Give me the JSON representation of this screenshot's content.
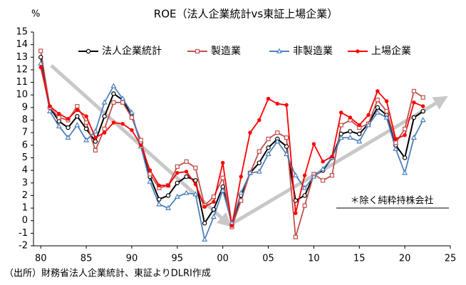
{
  "chart_data": {
    "type": "line",
    "title": "ROE（法人企業統計vs東証上場企業）",
    "y_label": "%",
    "annotation": "＊除く純粋持株会社",
    "source": "（出所）財務省法人企業統計、東証よりDLRI作成",
    "x": [
      1980,
      1981,
      1982,
      1983,
      1984,
      1985,
      1986,
      1987,
      1988,
      1989,
      1990,
      1991,
      1992,
      1993,
      1994,
      1995,
      1996,
      1997,
      1998,
      1999,
      2000,
      2001,
      2002,
      2003,
      2004,
      2005,
      2006,
      2007,
      2008,
      2009,
      2010,
      2011,
      2012,
      2013,
      2014,
      2015,
      2016,
      2017,
      2018,
      2019,
      2020,
      2021,
      2022
    ],
    "xlim": [
      1979.2,
      2025
    ],
    "xticks": [
      {
        "value": 1980,
        "label": "80"
      },
      {
        "value": 1985,
        "label": "85"
      },
      {
        "value": 1990,
        "label": "90"
      },
      {
        "value": 1995,
        "label": "95"
      },
      {
        "value": 2000,
        "label": "00"
      },
      {
        "value": 2005,
        "label": "05"
      },
      {
        "value": 2010,
        "label": "10"
      },
      {
        "value": 2015,
        "label": "15"
      },
      {
        "value": 2020,
        "label": "20"
      },
      {
        "value": 2025,
        "label": "25"
      }
    ],
    "ylim": [
      -2,
      15
    ],
    "yticks": [
      -2,
      -1,
      0,
      1,
      2,
      3,
      4,
      5,
      6,
      7,
      8,
      9,
      10,
      11,
      12,
      13,
      14,
      15
    ],
    "grid": false,
    "series": [
      {
        "name": "法人企業統計",
        "color": "#000000",
        "marker": "circle",
        "values": [
          13,
          9,
          7.9,
          7.4,
          8.3,
          7.3,
          6.3,
          8.3,
          10.1,
          9.6,
          8.3,
          6.2,
          3.5,
          1.7,
          2.0,
          3.0,
          3.5,
          3.2,
          -0.2,
          0.9,
          2.7,
          -0.3,
          2.0,
          3.8,
          4.6,
          5.8,
          6.5,
          5.9,
          1.6,
          2.0,
          3.6,
          4.0,
          5.0,
          6.9,
          7.1,
          6.9,
          7.7,
          9.0,
          8.4,
          6.0,
          5.0,
          8.2,
          8.7
        ]
      },
      {
        "name": "製造業",
        "color": "#c0504d",
        "marker": "square",
        "values": [
          13.5,
          9,
          8.2,
          8.0,
          9.1,
          7.8,
          5.6,
          7.3,
          9.4,
          9.4,
          8.2,
          6.4,
          3.7,
          2.6,
          2.8,
          4.3,
          4.7,
          4.2,
          1.2,
          1.9,
          3.4,
          -0.5,
          1.6,
          3.8,
          5.5,
          6.5,
          7.0,
          6.6,
          -1.3,
          1.2,
          3.7,
          3.2,
          3.6,
          7.6,
          8.0,
          7.4,
          7.7,
          9.6,
          8.7,
          6.2,
          7.3,
          10.3,
          9.8
        ]
      },
      {
        "name": "非製造業",
        "color": "#4f81bd",
        "marker": "triangle",
        "values": [
          12.5,
          8.7,
          7.5,
          6.6,
          7.6,
          6.4,
          7.1,
          9.4,
          10.7,
          9.7,
          8.6,
          5.9,
          3.1,
          1.3,
          1.0,
          1.9,
          2.2,
          2.1,
          -1.5,
          0.3,
          2.4,
          -0.2,
          2.2,
          3.8,
          3.9,
          5.3,
          6.3,
          5.3,
          3.6,
          2.6,
          3.5,
          4.1,
          5.0,
          6.6,
          6.6,
          6.3,
          7.6,
          8.6,
          8.2,
          5.7,
          3.8,
          6.6,
          8.0
        ]
      },
      {
        "name": "上場企業",
        "color": "#ff0000",
        "marker": "dot",
        "values": [
          12.2,
          9.1,
          8.5,
          8.1,
          8.8,
          8.3,
          6.6,
          7.0,
          7.8,
          7.7,
          7.2,
          6.0,
          4.0,
          2.8,
          2.8,
          3.8,
          3.9,
          2.9,
          1.1,
          1.5,
          4.6,
          -0.4,
          3.5,
          7.0,
          8.0,
          9.7,
          9.3,
          9.2,
          0.6,
          3.6,
          6.1,
          4.7,
          5.1,
          8.6,
          8.2,
          7.6,
          8.4,
          10.3,
          9.5,
          6.5,
          6.8,
          9.4,
          9.1
        ]
      }
    ]
  }
}
